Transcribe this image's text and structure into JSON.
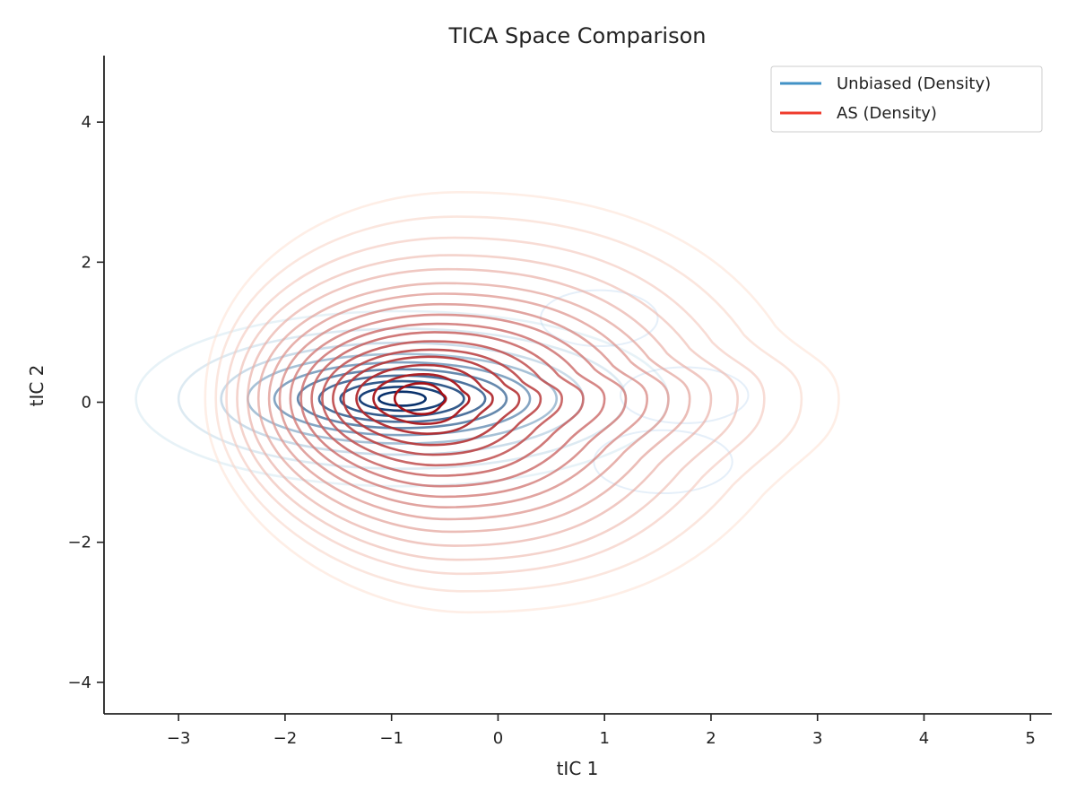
{
  "chart_data": {
    "type": "contour",
    "title": "TICA Space Comparison",
    "xlabel": "tIC 1",
    "ylabel": "tIC 2",
    "xlim": [
      -3.7,
      5.2
    ],
    "ylim": [
      -4.45,
      4.95
    ],
    "x_ticks": [
      {
        "value": -3,
        "label": "−3"
      },
      {
        "value": -2,
        "label": "−2"
      },
      {
        "value": -1,
        "label": "−1"
      },
      {
        "value": 0,
        "label": "0"
      },
      {
        "value": 1,
        "label": "1"
      },
      {
        "value": 2,
        "label": "2"
      },
      {
        "value": 3,
        "label": "3"
      },
      {
        "value": 4,
        "label": "4"
      },
      {
        "value": 5,
        "label": "5"
      }
    ],
    "y_ticks": [
      {
        "value": -4,
        "label": "−4"
      },
      {
        "value": -2,
        "label": "−2"
      },
      {
        "value": 0,
        "label": "0"
      },
      {
        "value": 2,
        "label": "2"
      },
      {
        "value": 4,
        "label": "4"
      }
    ],
    "grid": false,
    "legend_position": "top-right",
    "series": [
      {
        "name": "Unbiased (Density)",
        "legend_color": "#4292c6",
        "color_light": "#deebf7",
        "color_dark": "#08306b",
        "center": [
          -0.9,
          0.05
        ],
        "contours": [
          {
            "rx": 2.5,
            "ry": 1.25,
            "opacity": 0.25
          },
          {
            "rx": 2.1,
            "ry": 1.0,
            "opacity": 0.3
          },
          {
            "rx": 1.7,
            "ry": 0.8,
            "opacity": 0.4
          },
          {
            "rx": 1.45,
            "ry": 0.64,
            "opacity": 0.6
          },
          {
            "rx": 1.2,
            "ry": 0.52,
            "opacity": 0.75
          },
          {
            "rx": 0.98,
            "ry": 0.42,
            "opacity": 0.85
          },
          {
            "rx": 0.78,
            "ry": 0.33,
            "opacity": 0.9
          },
          {
            "rx": 0.58,
            "ry": 0.25,
            "opacity": 0.95
          },
          {
            "rx": 0.4,
            "ry": 0.17,
            "opacity": 1.0
          },
          {
            "rx": 0.22,
            "ry": 0.1,
            "opacity": 1.0
          }
        ],
        "secondary_lobes": [
          {
            "center": [
              1.75,
              0.1
            ],
            "rx": 0.6,
            "ry": 0.4
          },
          {
            "center": [
              1.55,
              -0.85
            ],
            "rx": 0.65,
            "ry": 0.45
          },
          {
            "center": [
              0.95,
              1.2
            ],
            "rx": 0.55,
            "ry": 0.4
          }
        ]
      },
      {
        "name": "AS (Density)",
        "legend_color": "#ef3b2c",
        "color_light": "#fee0d2",
        "color_dark": "#a50f15",
        "center": [
          -0.75,
          0.05
        ],
        "contours": [
          {
            "rx_left": 2.0,
            "rx_right": 3.95,
            "ry_top": 2.95,
            "ry_bottom": 3.05
          },
          {
            "rx_left": 1.9,
            "rx_right": 3.6,
            "ry_top": 2.6,
            "ry_bottom": 2.75
          },
          {
            "rx_left": 1.8,
            "rx_right": 3.25,
            "ry_top": 2.3,
            "ry_bottom": 2.5
          },
          {
            "rx_left": 1.7,
            "rx_right": 3.0,
            "ry_top": 2.05,
            "ry_bottom": 2.3
          },
          {
            "rx_left": 1.6,
            "rx_right": 2.75,
            "ry_top": 1.85,
            "ry_bottom": 2.1
          },
          {
            "rx_left": 1.5,
            "rx_right": 2.55,
            "ry_top": 1.65,
            "ry_bottom": 1.9
          },
          {
            "rx_left": 1.4,
            "rx_right": 2.35,
            "ry_top": 1.5,
            "ry_bottom": 1.72
          },
          {
            "rx_left": 1.3,
            "rx_right": 2.15,
            "ry_top": 1.35,
            "ry_bottom": 1.55
          },
          {
            "rx_left": 1.2,
            "rx_right": 1.95,
            "ry_top": 1.2,
            "ry_bottom": 1.4
          },
          {
            "rx_left": 1.1,
            "rx_right": 1.75,
            "ry_top": 1.07,
            "ry_bottom": 1.25
          },
          {
            "rx_left": 1.0,
            "rx_right": 1.55,
            "ry_top": 0.95,
            "ry_bottom": 1.1
          },
          {
            "rx_left": 0.9,
            "rx_right": 1.35,
            "ry_top": 0.82,
            "ry_bottom": 0.95
          },
          {
            "rx_left": 0.8,
            "rx_right": 1.15,
            "ry_top": 0.7,
            "ry_bottom": 0.8
          },
          {
            "rx_left": 0.7,
            "rx_right": 0.95,
            "ry_top": 0.6,
            "ry_bottom": 0.66
          },
          {
            "rx_left": 0.58,
            "rx_right": 0.7,
            "ry_top": 0.48,
            "ry_bottom": 0.5
          },
          {
            "rx_left": 0.42,
            "rx_right": 0.48,
            "ry_top": 0.35,
            "ry_bottom": 0.36
          },
          {
            "rx_left": 0.22,
            "rx_right": 0.26,
            "ry_top": 0.22,
            "ry_bottom": 0.22
          }
        ]
      }
    ]
  }
}
